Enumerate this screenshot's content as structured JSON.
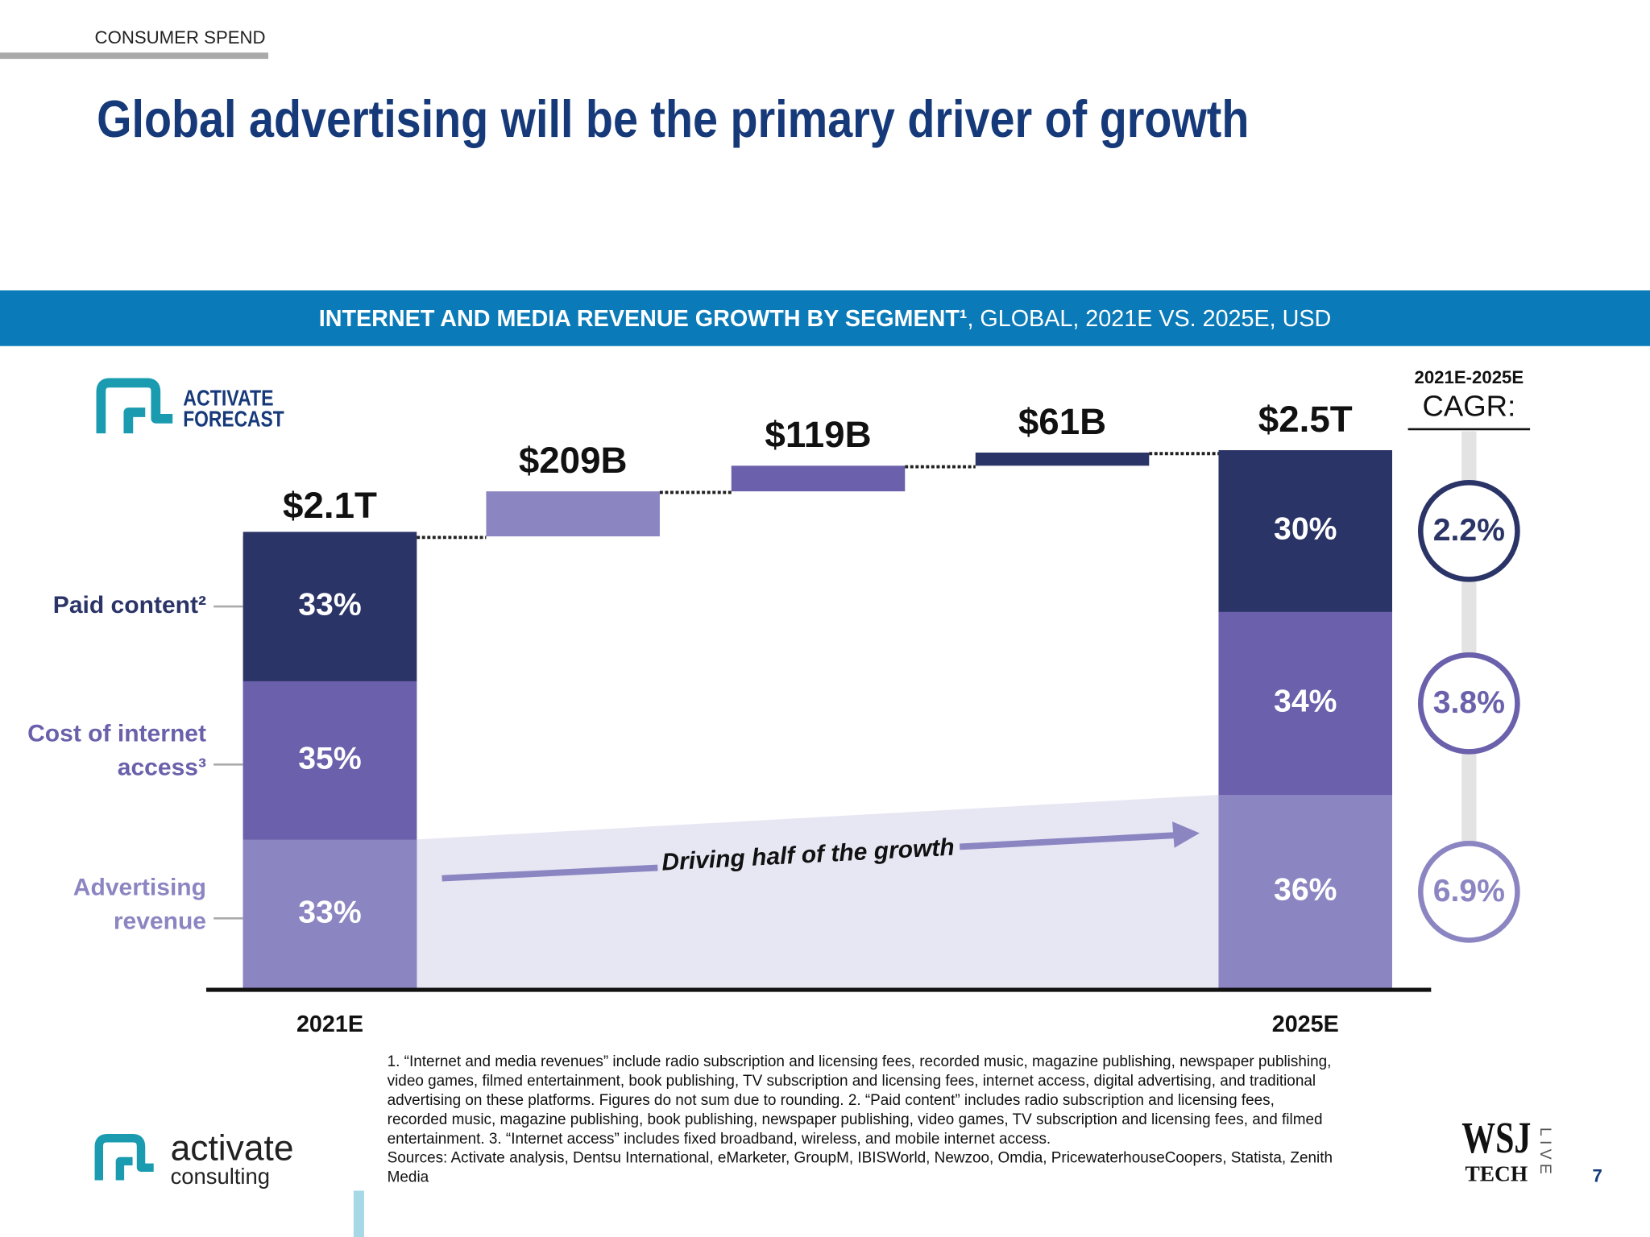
{
  "header": {
    "section": "CONSUMER SPEND",
    "title": "Global advertising will be the primary driver of growth"
  },
  "banner": {
    "bold": "INTERNET AND MEDIA REVENUE GROWTH BY SEGMENT¹",
    "rest": ", GLOBAL, 2021E VS. 2025E, USD"
  },
  "logo": {
    "line1": "ACTIVATE",
    "line2": "FORECAST"
  },
  "chart_data": {
    "type": "waterfall",
    "categories": [
      "2021E",
      null,
      null,
      null,
      "2025E"
    ],
    "values": [
      2100,
      209,
      119,
      61,
      2500
    ],
    "value_labels": [
      "$2.1T",
      "$209B",
      "$119B",
      "$61B",
      "$2.5T"
    ],
    "colors": [
      "#2b3467",
      "#8b86c2",
      "#6a60ab",
      "#2b3467",
      "#2b3467"
    ],
    "series": [
      {
        "name": "Paid content²",
        "color": "#2b3467",
        "values": [
          33,
          null,
          null,
          null,
          30
        ],
        "value_labels": [
          "33%",
          null,
          null,
          null,
          "30%"
        ],
        "cagr": 2.2,
        "cagr_label": "2.2%"
      },
      {
        "name": "Cost of internet access³",
        "color": "#6a60ab",
        "values": [
          35,
          null,
          null,
          null,
          34
        ],
        "value_labels": [
          "35%",
          null,
          null,
          null,
          "34%"
        ],
        "cagr": 3.8,
        "cagr_label": "3.8%"
      },
      {
        "name": "Advertising revenue",
        "color": "#8b86c2",
        "values": [
          33,
          null,
          null,
          null,
          36
        ],
        "value_labels": [
          "33%",
          null,
          null,
          null,
          "36%"
        ],
        "cagr": 6.9,
        "cagr_label": "6.9%"
      }
    ],
    "cagr_title": "2021E-2025E",
    "cagr_label": "CAGR:",
    "annotation": "Driving half of the growth"
  },
  "footnotes": [
    "1. “Internet and media revenues” include radio subscription and licensing fees, recorded music, magazine publishing, newspaper publishing,",
    "video games, filmed entertainment, book publishing, TV subscription and licensing fees, internet access, digital advertising, and traditional",
    "advertising on these platforms. Figures do not sum due to rounding.  2. “Paid content” includes radio subscription and licensing fees,",
    "recorded music, magazine publishing, book publishing, newspaper publishing, video games, TV subscription and licensing fees, and filmed",
    "entertainment.  3. “Internet access” includes fixed broadband, wireless, and mobile internet access.",
    "Sources: Activate analysis, Dentsu International, eMarketer, GroupM, IBISWorld, Newzoo, Omdia, PricewaterhouseCoopers, Statista, Zenith",
    "Media"
  ],
  "footer": {
    "brand": "activate",
    "brand_sub": "consulting",
    "wsj": "WSJ",
    "tech": "TECH",
    "live": "LIVE",
    "page": "7"
  }
}
